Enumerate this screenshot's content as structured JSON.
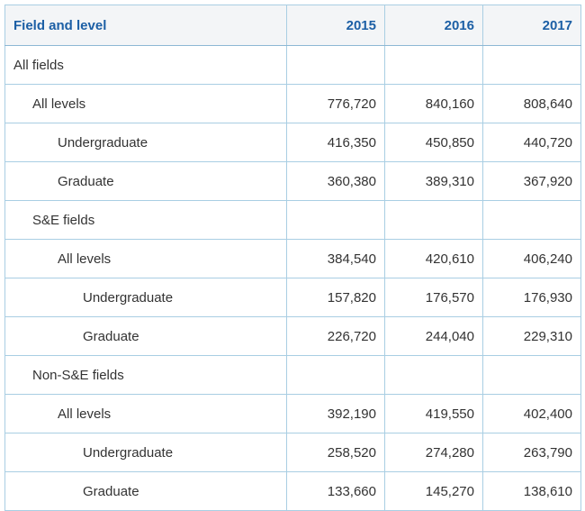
{
  "chart_data": {
    "type": "table",
    "columns": [
      "Field and level",
      "2015",
      "2016",
      "2017"
    ],
    "rows": [
      {
        "label": "All fields",
        "indent": 0,
        "values": [
          "",
          "",
          ""
        ]
      },
      {
        "label": "All levels",
        "indent": 1,
        "values": [
          "776,720",
          "840,160",
          "808,640"
        ]
      },
      {
        "label": "Undergraduate",
        "indent": 2,
        "values": [
          "416,350",
          "450,850",
          "440,720"
        ]
      },
      {
        "label": "Graduate",
        "indent": 2,
        "values": [
          "360,380",
          "389,310",
          "367,920"
        ]
      },
      {
        "label": "S&E fields",
        "indent": 1,
        "values": [
          "",
          "",
          ""
        ]
      },
      {
        "label": "All levels",
        "indent": 2,
        "values": [
          "384,540",
          "420,610",
          "406,240"
        ]
      },
      {
        "label": "Undergraduate",
        "indent": 3,
        "values": [
          "157,820",
          "176,570",
          "176,930"
        ]
      },
      {
        "label": "Graduate",
        "indent": 3,
        "values": [
          "226,720",
          "244,040",
          "229,310"
        ]
      },
      {
        "label": "Non-S&E fields",
        "indent": 1,
        "values": [
          "",
          "",
          ""
        ]
      },
      {
        "label": "All levels",
        "indent": 2,
        "values": [
          "392,190",
          "419,550",
          "402,400"
        ]
      },
      {
        "label": "Undergraduate",
        "indent": 3,
        "values": [
          "258,520",
          "274,280",
          "263,790"
        ]
      },
      {
        "label": "Graduate",
        "indent": 3,
        "values": [
          "133,660",
          "145,270",
          "138,610"
        ]
      }
    ]
  },
  "colors": {
    "header_text": "#1c5fa5",
    "header_background": "#f3f5f7",
    "border_outer": "#7fafce",
    "border_inner": "#a9cee3",
    "body_text": "#333333",
    "body_background": "#ffffff"
  }
}
